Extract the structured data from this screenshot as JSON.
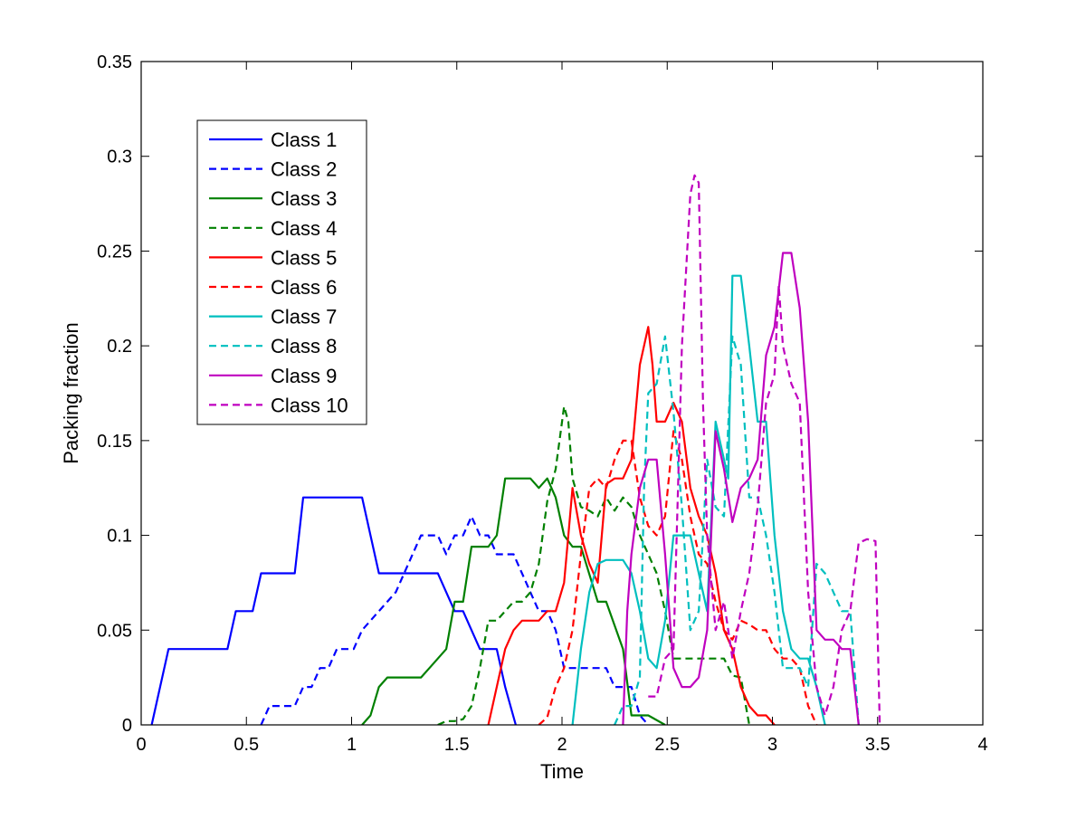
{
  "chart_data": {
    "type": "line",
    "title": "",
    "xlabel": "Time",
    "ylabel": "Packing fraction",
    "xlim": [
      0,
      4
    ],
    "ylim": [
      0,
      0.35
    ],
    "xticks": [
      0,
      0.5,
      1,
      1.5,
      2,
      2.5,
      3,
      3.5,
      4
    ],
    "xtick_labels": [
      "0",
      "0.5",
      "1",
      "1.5",
      "2",
      "2.5",
      "3",
      "3.5",
      "4"
    ],
    "yticks": [
      0,
      0.05,
      0.1,
      0.15,
      0.2,
      0.25,
      0.3,
      0.35
    ],
    "ytick_labels": [
      "0",
      "0.05",
      "0.1",
      "0.15",
      "0.2",
      "0.25",
      "0.3",
      "0.35"
    ],
    "grid": false,
    "legend_position": "top-left",
    "series": [
      {
        "name": "Class 1",
        "color": "#0000ff",
        "dash": "solid",
        "x": [
          0.05,
          0.09,
          0.13,
          0.41,
          0.45,
          0.53,
          0.57,
          0.73,
          0.77,
          1.05,
          1.13,
          1.41,
          1.45,
          1.49,
          1.53,
          1.57,
          1.61,
          1.65,
          1.69,
          1.73,
          1.78
        ],
        "y": [
          0,
          0.02,
          0.04,
          0.04,
          0.06,
          0.06,
          0.08,
          0.08,
          0.12,
          0.12,
          0.08,
          0.08,
          0.07,
          0.06,
          0.06,
          0.05,
          0.04,
          0.04,
          0.04,
          0.02,
          0
        ]
      },
      {
        "name": "Class 2",
        "color": "#0000ff",
        "dash": "dashed",
        "x": [
          0.57,
          0.61,
          0.73,
          0.77,
          0.81,
          0.85,
          0.89,
          0.93,
          1.01,
          1.05,
          1.13,
          1.21,
          1.29,
          1.33,
          1.37,
          1.41,
          1.45,
          1.49,
          1.53,
          1.57,
          1.61,
          1.65,
          1.69,
          1.77,
          1.81,
          1.85,
          1.89,
          1.93,
          1.97,
          2.01,
          2.05,
          2.09,
          2.21,
          2.25,
          2.33,
          2.37,
          2.41
        ],
        "y": [
          0,
          0.01,
          0.01,
          0.02,
          0.02,
          0.03,
          0.03,
          0.04,
          0.04,
          0.05,
          0.06,
          0.07,
          0.09,
          0.1,
          0.1,
          0.1,
          0.09,
          0.1,
          0.1,
          0.11,
          0.1,
          0.1,
          0.09,
          0.09,
          0.08,
          0.07,
          0.06,
          0.06,
          0.05,
          0.03,
          0.03,
          0.03,
          0.03,
          0.02,
          0.02,
          0.005,
          0
        ]
      },
      {
        "name": "Class 3",
        "color": "#008000",
        "dash": "solid",
        "x": [
          1.05,
          1.09,
          1.13,
          1.17,
          1.25,
          1.33,
          1.37,
          1.41,
          1.45,
          1.49,
          1.53,
          1.57,
          1.65,
          1.69,
          1.73,
          1.77,
          1.85,
          1.89,
          1.93,
          1.97,
          2.01,
          2.05,
          2.09,
          2.17,
          2.21,
          2.29,
          2.33,
          2.41,
          2.49
        ],
        "y": [
          0,
          0.005,
          0.02,
          0.025,
          0.025,
          0.025,
          0.03,
          0.035,
          0.04,
          0.065,
          0.065,
          0.094,
          0.094,
          0.1,
          0.13,
          0.13,
          0.13,
          0.125,
          0.13,
          0.12,
          0.1,
          0.094,
          0.094,
          0.065,
          0.065,
          0.04,
          0.005,
          0.005,
          0
        ]
      },
      {
        "name": "Class 4",
        "color": "#008000",
        "dash": "dashed",
        "x": [
          1.41,
          1.45,
          1.49,
          1.53,
          1.57,
          1.61,
          1.65,
          1.69,
          1.73,
          1.77,
          1.81,
          1.85,
          1.89,
          1.93,
          1.97,
          2.01,
          2.03,
          2.05,
          2.09,
          2.13,
          2.17,
          2.21,
          2.25,
          2.29,
          2.33,
          2.37,
          2.41,
          2.45,
          2.49,
          2.53,
          2.57,
          2.61,
          2.65,
          2.69,
          2.73,
          2.77,
          2.81,
          2.85,
          2.89
        ],
        "y": [
          0,
          0.002,
          0.002,
          0.003,
          0.01,
          0.03,
          0.055,
          0.055,
          0.06,
          0.065,
          0.065,
          0.07,
          0.085,
          0.118,
          0.135,
          0.168,
          0.16,
          0.13,
          0.115,
          0.113,
          0.11,
          0.12,
          0.113,
          0.12,
          0.115,
          0.1,
          0.09,
          0.08,
          0.06,
          0.035,
          0.035,
          0.035,
          0.035,
          0.035,
          0.035,
          0.035,
          0.026,
          0.025,
          0
        ]
      },
      {
        "name": "Class 5",
        "color": "#ff0000",
        "dash": "solid",
        "x": [
          1.65,
          1.69,
          1.73,
          1.77,
          1.81,
          1.85,
          1.89,
          1.93,
          1.97,
          2.01,
          2.03,
          2.05,
          2.09,
          2.13,
          2.17,
          2.21,
          2.25,
          2.29,
          2.33,
          2.37,
          2.41,
          2.43,
          2.45,
          2.49,
          2.53,
          2.57,
          2.61,
          2.65,
          2.69,
          2.73,
          2.77,
          2.81,
          2.85,
          2.89,
          2.93,
          2.97,
          3.01
        ],
        "y": [
          0,
          0.02,
          0.04,
          0.05,
          0.055,
          0.055,
          0.055,
          0.06,
          0.06,
          0.075,
          0.1,
          0.125,
          0.1,
          0.085,
          0.075,
          0.127,
          0.13,
          0.13,
          0.14,
          0.19,
          0.21,
          0.19,
          0.16,
          0.16,
          0.17,
          0.16,
          0.125,
          0.11,
          0.1,
          0.08,
          0.05,
          0.04,
          0.02,
          0.01,
          0.005,
          0.005,
          0
        ]
      },
      {
        "name": "Class 6",
        "color": "#ff0000",
        "dash": "dashed",
        "x": [
          1.89,
          1.93,
          1.97,
          2.01,
          2.05,
          2.09,
          2.13,
          2.17,
          2.21,
          2.25,
          2.29,
          2.33,
          2.37,
          2.41,
          2.45,
          2.49,
          2.53,
          2.57,
          2.61,
          2.65,
          2.69,
          2.73,
          2.77,
          2.81,
          2.85,
          2.89,
          2.93,
          2.97,
          3.01,
          3.05,
          3.09,
          3.13,
          3.17,
          3.21
        ],
        "y": [
          0,
          0.004,
          0.02,
          0.03,
          0.05,
          0.09,
          0.125,
          0.13,
          0.125,
          0.14,
          0.15,
          0.15,
          0.12,
          0.105,
          0.1,
          0.11,
          0.155,
          0.14,
          0.11,
          0.09,
          0.085,
          0.065,
          0.05,
          0.045,
          0.055,
          0.053,
          0.05,
          0.05,
          0.04,
          0.035,
          0.035,
          0.03,
          0.01,
          0
        ]
      },
      {
        "name": "Class 7",
        "color": "#00bfbf",
        "dash": "solid",
        "x": [
          2.05,
          2.09,
          2.13,
          2.17,
          2.21,
          2.25,
          2.29,
          2.33,
          2.37,
          2.41,
          2.45,
          2.49,
          2.53,
          2.57,
          2.61,
          2.65,
          2.69,
          2.73,
          2.77,
          2.79,
          2.81,
          2.85,
          2.89,
          2.93,
          2.97,
          3.01,
          3.05,
          3.09,
          3.13,
          3.17,
          3.21,
          3.25
        ],
        "y": [
          0,
          0.04,
          0.07,
          0.085,
          0.087,
          0.087,
          0.087,
          0.08,
          0.06,
          0.035,
          0.03,
          0.055,
          0.1,
          0.1,
          0.1,
          0.08,
          0.06,
          0.16,
          0.14,
          0.13,
          0.237,
          0.237,
          0.2,
          0.16,
          0.16,
          0.1,
          0.06,
          0.04,
          0.035,
          0.035,
          0.02,
          0
        ]
      },
      {
        "name": "Class 8",
        "color": "#00bfbf",
        "dash": "dashed",
        "x": [
          2.25,
          2.29,
          2.33,
          2.37,
          2.39,
          2.41,
          2.45,
          2.49,
          2.53,
          2.57,
          2.61,
          2.65,
          2.69,
          2.73,
          2.77,
          2.81,
          2.85,
          2.89,
          2.93,
          2.97,
          3.01,
          3.05,
          3.09,
          3.13,
          3.17,
          3.21,
          3.25,
          3.29,
          3.33,
          3.37,
          3.41
        ],
        "y": [
          0,
          0.01,
          0.01,
          0.025,
          0.125,
          0.175,
          0.18,
          0.205,
          0.165,
          0.115,
          0.05,
          0.06,
          0.14,
          0.115,
          0.11,
          0.205,
          0.19,
          0.12,
          0.12,
          0.1,
          0.07,
          0.03,
          0.03,
          0.03,
          0.02,
          0.085,
          0.08,
          0.07,
          0.06,
          0.06,
          0
        ]
      },
      {
        "name": "Class 9",
        "color": "#bf00bf",
        "dash": "solid",
        "x": [
          2.29,
          2.31,
          2.33,
          2.37,
          2.41,
          2.45,
          2.49,
          2.53,
          2.57,
          2.61,
          2.65,
          2.69,
          2.73,
          2.77,
          2.81,
          2.85,
          2.89,
          2.93,
          2.97,
          3.01,
          3.05,
          3.09,
          3.13,
          3.17,
          3.21,
          3.25,
          3.29,
          3.33,
          3.37,
          3.41
        ],
        "y": [
          0,
          0.06,
          0.09,
          0.125,
          0.14,
          0.14,
          0.09,
          0.03,
          0.02,
          0.02,
          0.025,
          0.05,
          0.155,
          0.135,
          0.107,
          0.125,
          0.13,
          0.14,
          0.195,
          0.21,
          0.249,
          0.249,
          0.22,
          0.16,
          0.05,
          0.045,
          0.045,
          0.04,
          0.04,
          0
        ]
      },
      {
        "name": "Class 10",
        "color": "#bf00bf",
        "dash": "dashed",
        "x": [
          2.41,
          2.45,
          2.49,
          2.53,
          2.55,
          2.57,
          2.61,
          2.63,
          2.65,
          2.67,
          2.69,
          2.73,
          2.77,
          2.81,
          2.85,
          2.89,
          2.93,
          2.97,
          3.01,
          3.03,
          3.05,
          3.09,
          3.13,
          3.17,
          3.21,
          3.25,
          3.29,
          3.33,
          3.37,
          3.41,
          3.45,
          3.49,
          3.51
        ],
        "y": [
          0.015,
          0.015,
          0.035,
          0.04,
          0.12,
          0.2,
          0.28,
          0.29,
          0.286,
          0.17,
          0.1,
          0.05,
          0.065,
          0.035,
          0.06,
          0.08,
          0.115,
          0.17,
          0.185,
          0.232,
          0.2,
          0.18,
          0.17,
          0.07,
          0.02,
          0.005,
          0.02,
          0.05,
          0.06,
          0.096,
          0.098,
          0.097,
          0
        ]
      }
    ]
  }
}
